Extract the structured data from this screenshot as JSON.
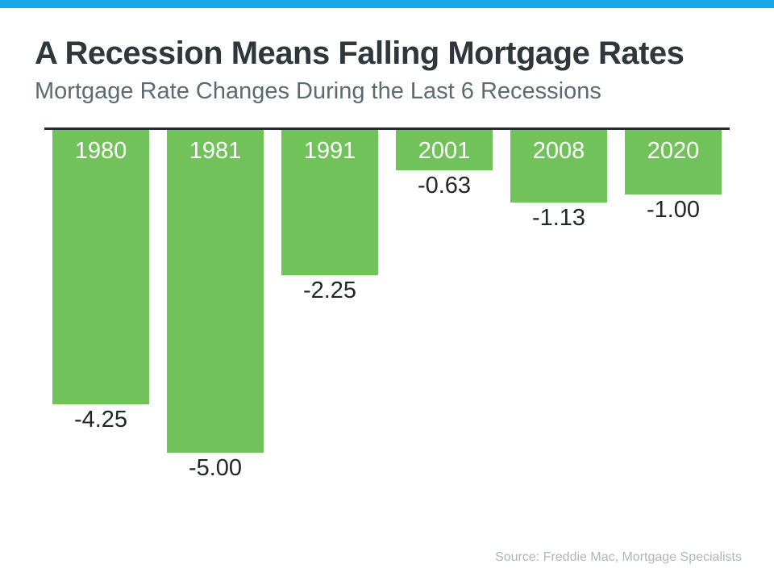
{
  "header": {
    "title": "A Recession Means Falling Mortgage Rates",
    "subtitle": "Mortgage Rate Changes During the Last 6 Recessions"
  },
  "footer": {
    "source": "Source: Freddie Mac, Mortgage Specialists"
  },
  "colors": {
    "top_accent_bar": "#18A8E8",
    "bar_green": "#72C25C",
    "baseline": "#262C36"
  },
  "chart_data": {
    "type": "bar",
    "title": "A Recession Means Falling Mortgage Rates",
    "subtitle": "Mortgage Rate Changes During the Last 6 Recessions",
    "categories": [
      "1980",
      "1981",
      "1991",
      "2001",
      "2008",
      "2020"
    ],
    "values": [
      -4.25,
      -5.0,
      -2.25,
      -0.63,
      -1.13,
      -1.0
    ],
    "value_labels": [
      "-4.25",
      "-5.00",
      "-2.25",
      "-0.63",
      "-1.13",
      "-1.00"
    ],
    "xlabel": "",
    "ylabel": "",
    "ylim": [
      -5.5,
      0
    ],
    "baseline": 0,
    "grid": false,
    "legend": false,
    "orientation": "columns-hanging-below-zero-line",
    "bar_color": "#72C25C",
    "annotation_source": "Source: Freddie Mac, Mortgage Specialists"
  }
}
